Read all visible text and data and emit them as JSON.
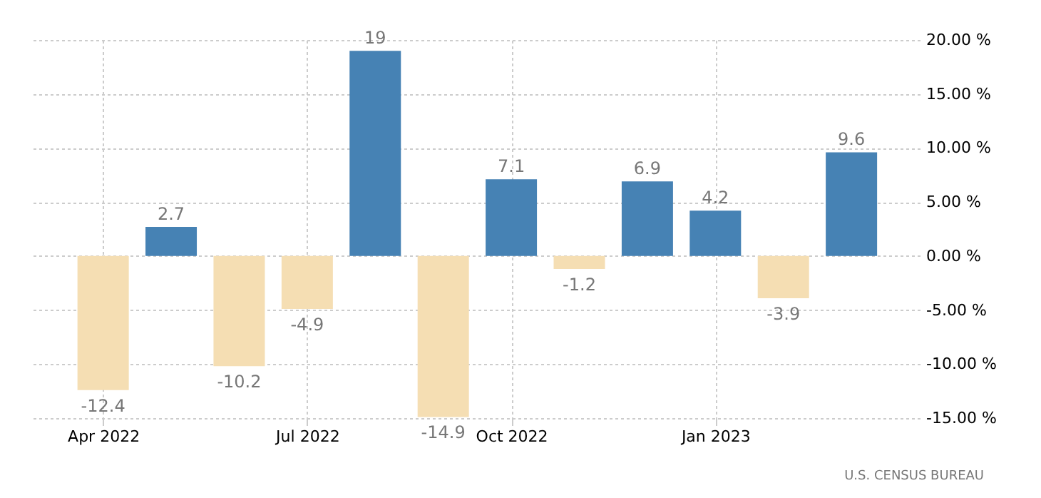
{
  "chart_data": {
    "type": "bar",
    "categories": [
      "Apr 2022",
      null,
      null,
      "Jul 2022",
      null,
      null,
      "Oct 2022",
      null,
      null,
      "Jan 2023",
      null,
      null
    ],
    "values": [
      -12.4,
      2.7,
      -10.2,
      -4.9,
      19,
      -14.9,
      7.1,
      -1.2,
      6.9,
      4.2,
      -3.9,
      9.6
    ],
    "colors": [
      "#f5deb3",
      "#4682b4",
      "#f5deb3",
      "#f5deb3",
      "#4682b4",
      "#f5deb3",
      "#4682b4",
      "#f5deb3",
      "#4682b4",
      "#4682b4",
      "#f5deb3",
      "#4682b4"
    ],
    "ylim": [
      -15,
      20
    ],
    "yticks": [
      {
        "value": -15,
        "label": "-15.00 %"
      },
      {
        "value": -10,
        "label": "-10.00 %"
      },
      {
        "value": -5,
        "label": "-5.00 %"
      },
      {
        "value": 0,
        "label": "0.00 %"
      },
      {
        "value": 5,
        "label": "5.00 %"
      },
      {
        "value": 10,
        "label": "10.00 %"
      },
      {
        "value": 15,
        "label": "15.00 %"
      },
      {
        "value": 20,
        "label": "20.00 %"
      }
    ],
    "grid": true,
    "data_labels": true,
    "annotations": [
      "U.S. CENSUS BUREAU"
    ]
  }
}
